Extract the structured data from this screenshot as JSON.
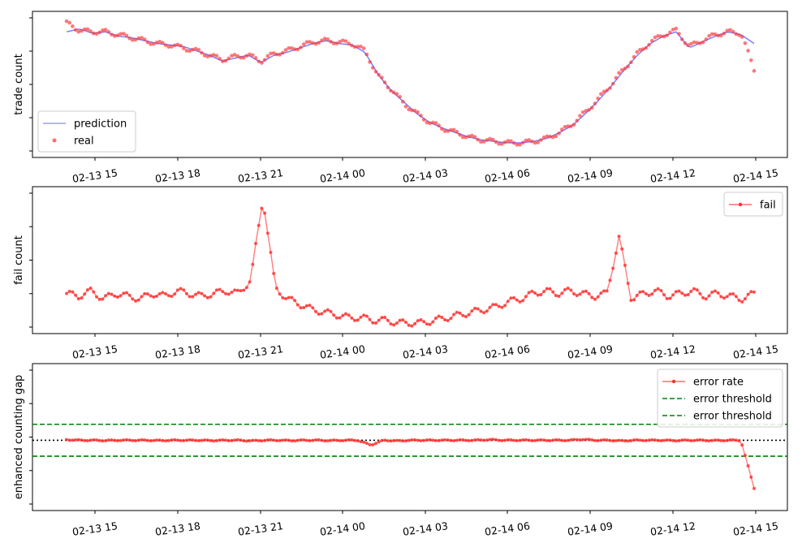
{
  "chart_data": [
    {
      "type": "line",
      "ylabel": "trade count",
      "x_ticks": [
        "02-13 15",
        "02-13 18",
        "02-13 21",
        "02-14 00",
        "02-14 03",
        "02-14 06",
        "02-14 09",
        "02-14 12",
        "02-14 15"
      ],
      "legend": [
        "prediction",
        "real"
      ],
      "legend_position": "lower left",
      "series": [
        {
          "name": "prediction",
          "color": "#7070ff",
          "style": "line",
          "values": [
            86,
            88,
            85,
            86,
            83,
            82,
            80,
            78,
            77,
            76,
            73,
            70,
            66,
            68,
            70,
            65,
            70,
            72,
            75,
            78,
            80,
            78,
            77,
            72,
            57,
            46,
            38,
            30,
            24,
            20,
            17,
            14,
            12,
            11,
            10,
            10,
            11,
            13,
            17,
            22,
            30,
            39,
            49,
            60,
            70,
            78,
            83,
            86,
            75,
            79,
            83,
            86,
            84,
            78
          ]
        },
        {
          "name": "real",
          "color": "#ff3030",
          "style": "scatter",
          "values": [
            92,
            87,
            86,
            86,
            84,
            82,
            80,
            78,
            77,
            75,
            73,
            70,
            67,
            69,
            70,
            66,
            71,
            73,
            76,
            79,
            80,
            79,
            78,
            73,
            56,
            47,
            37,
            30,
            24,
            20,
            17,
            14,
            12,
            11,
            10,
            10,
            11,
            13,
            17,
            23,
            31,
            40,
            50,
            61,
            71,
            79,
            84,
            87,
            76,
            80,
            84,
            86,
            85,
            60
          ]
        }
      ]
    },
    {
      "type": "line",
      "ylabel": "fail count",
      "x_ticks": [
        "02-13 15",
        "02-13 18",
        "02-13 21",
        "02-14 00",
        "02-14 03",
        "02-14 06",
        "02-14 09",
        "02-14 12",
        "02-14 15"
      ],
      "legend": [
        "fail"
      ],
      "legend_position": "upper right",
      "series": [
        {
          "name": "fail",
          "color": "#ff3030",
          "values": [
            12,
            11,
            13,
            10,
            12,
            11,
            10,
            12,
            11,
            13,
            12,
            11,
            12,
            13,
            12,
            17,
            48,
            14,
            10,
            8,
            6,
            5,
            4,
            3,
            3,
            2,
            2,
            1,
            1,
            1,
            2,
            3,
            4,
            5,
            6,
            7,
            9,
            10,
            12,
            13,
            12,
            13,
            12,
            11,
            12,
            33,
            10,
            12,
            13,
            11,
            12,
            13,
            11,
            12,
            11,
            10,
            12
          ]
        }
      ]
    },
    {
      "type": "line",
      "ylabel": "enhanced counting gap",
      "x_ticks": [
        "02-13 15",
        "02-13 18",
        "02-13 21",
        "02-14 00",
        "02-14 03",
        "02-14 06",
        "02-14 09",
        "02-14 12",
        "02-14 15"
      ],
      "legend": [
        "error rate",
        "error threshold",
        "error threshold"
      ],
      "legend_position": "upper right",
      "series": [
        {
          "name": "error rate",
          "color": "#ff3030",
          "values": [
            0.02,
            0.0,
            0.0,
            -0.01,
            0.0,
            0.0,
            0.0,
            -0.01,
            0.0,
            0.0,
            0.0,
            -0.01,
            0.0,
            0.0,
            -0.02,
            0.0,
            0.0,
            -0.01,
            0.0,
            0.0,
            -0.01,
            0.0,
            0.0,
            -0.15,
            0.0,
            -0.02,
            0.0,
            0.0,
            0.0,
            0.0,
            0.0,
            0.0,
            0.02,
            0.0,
            0.0,
            0.0,
            0.0,
            0.0,
            0.0,
            0.03,
            0.0,
            0.0,
            -0.02,
            0.0,
            0.0,
            0.0,
            -0.01,
            0.0,
            0.0,
            -0.01,
            0.0,
            0.0,
            -1.5
          ]
        },
        {
          "name": "error threshold",
          "color": "#008000",
          "value": 0.5
        },
        {
          "name": "error threshold",
          "color": "#008000",
          "value": -0.5
        }
      ],
      "zero_line": 0
    }
  ]
}
